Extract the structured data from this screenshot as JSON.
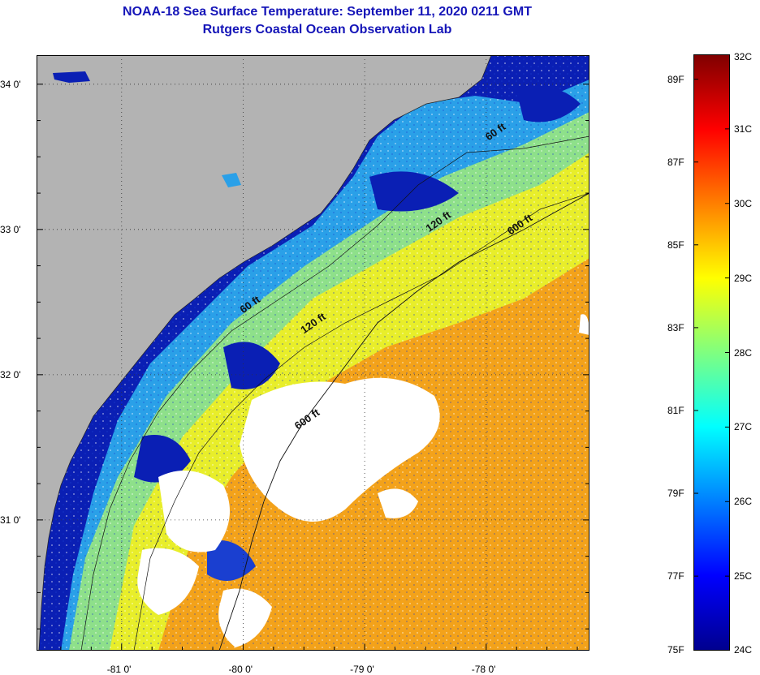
{
  "header": {
    "title_line1": "NOAA-18 Sea Surface Temperature:  September 11, 2020 0211 GMT",
    "title_line2": "Rutgers Coastal Ocean Observation Lab"
  },
  "map": {
    "lon_range": [
      -81.7,
      -77.15
    ],
    "lat_range": [
      30.1,
      34.2
    ],
    "lon_ticks": [
      {
        "value": -81,
        "label": "-81 0'"
      },
      {
        "value": -80,
        "label": "-80 0'"
      },
      {
        "value": -79,
        "label": "-79 0'"
      },
      {
        "value": -78,
        "label": "-78 0'"
      }
    ],
    "lat_ticks": [
      {
        "value": 34,
        "label": "34 0'"
      },
      {
        "value": 33,
        "label": "33 0'"
      },
      {
        "value": 32,
        "label": "32 0'"
      },
      {
        "value": 31,
        "label": "31 0'"
      }
    ],
    "contour_labels": [
      {
        "text": "60 ft",
        "lon": -77.98,
        "lat": 33.61
      },
      {
        "text": "120 ft",
        "lon": -78.47,
        "lat": 32.98
      },
      {
        "text": "600 ft",
        "lon": -77.8,
        "lat": 32.96
      },
      {
        "text": "60 ft",
        "lon": -80.0,
        "lat": 32.42
      },
      {
        "text": "120 ft",
        "lon": -79.5,
        "lat": 32.28
      },
      {
        "text": "600 ft",
        "lon": -79.55,
        "lat": 31.62
      }
    ],
    "colors": {
      "land": "#b3b3b3",
      "cloud": "#ffffff",
      "cold_nearshore": "#0a1fb4",
      "cool": "#2aa0e8",
      "mid": "#8ee08a",
      "shelf": "#e8ee2a",
      "offshore": "#f3a21a"
    }
  },
  "colorbar": {
    "min_c": 24,
    "max_c": 32,
    "celsius_labels": [
      {
        "value": 32,
        "label": "32C"
      },
      {
        "value": 31,
        "label": "31C"
      },
      {
        "value": 30,
        "label": "30C"
      },
      {
        "value": 29,
        "label": "29C"
      },
      {
        "value": 28,
        "label": "28C"
      },
      {
        "value": 27,
        "label": "27C"
      },
      {
        "value": 26,
        "label": "26C"
      },
      {
        "value": 25,
        "label": "25C"
      },
      {
        "value": 24,
        "label": "24C"
      }
    ],
    "fahrenheit_labels": [
      {
        "value": 89,
        "label": "89F"
      },
      {
        "value": 87,
        "label": "87F"
      },
      {
        "value": 85,
        "label": "85F"
      },
      {
        "value": 83,
        "label": "83F"
      },
      {
        "value": 81,
        "label": "81F"
      },
      {
        "value": 79,
        "label": "79F"
      },
      {
        "value": 77,
        "label": "77F"
      },
      {
        "value": 75,
        "label": "75F"
      }
    ]
  }
}
